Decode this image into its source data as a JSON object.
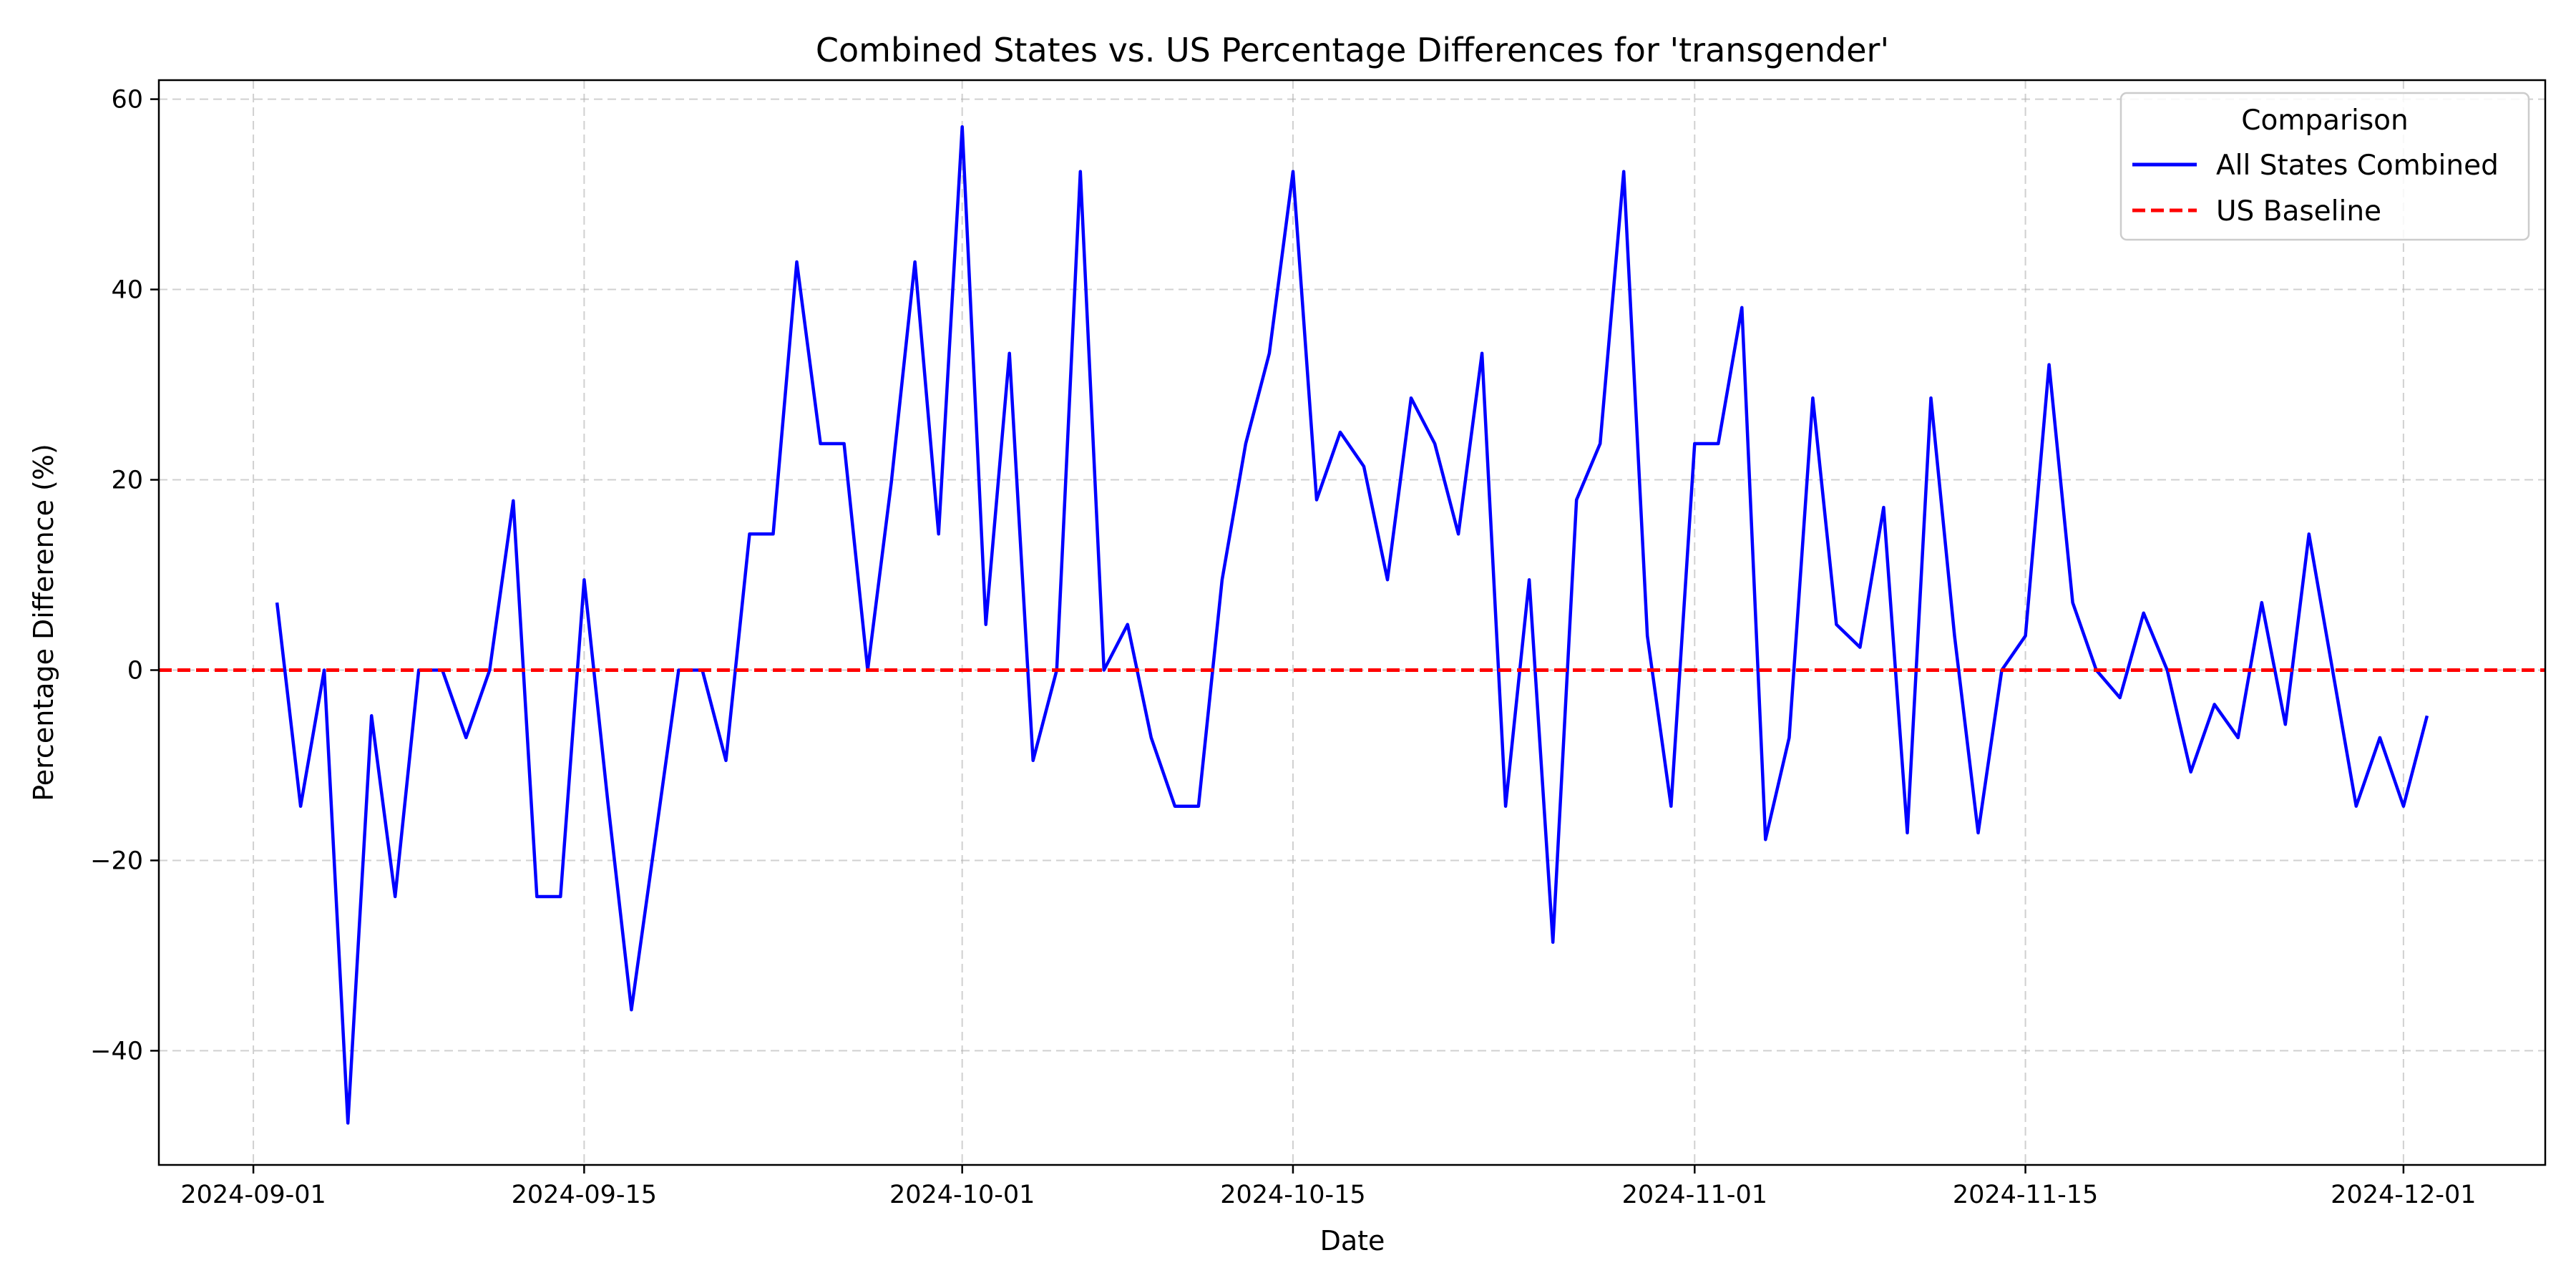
{
  "chart_data": {
    "type": "line",
    "title": "Combined States vs. US Percentage Differences for 'transgender'",
    "xlabel": "Date",
    "ylabel": "Percentage Difference (%)",
    "xlim": [
      "2024-08-28",
      "2024-12-07"
    ],
    "ylim": [
      -52,
      62
    ],
    "x_ticks": [
      "2024-09-01",
      "2024-09-15",
      "2024-10-01",
      "2024-10-15",
      "2024-11-01",
      "2024-11-15",
      "2024-12-01"
    ],
    "y_ticks": [
      60,
      40,
      20,
      0,
      -20,
      -40
    ],
    "y_tick_labels": [
      "60",
      "40",
      "20",
      "0",
      "−20",
      "−40"
    ],
    "grid": true,
    "legend": {
      "title": "Comparison",
      "placement": "top-right"
    },
    "series": [
      {
        "name": "All States Combined",
        "color": "#0000ff",
        "style": "solid",
        "x": [
          "2024-09-02",
          "2024-09-03",
          "2024-09-04",
          "2024-09-05",
          "2024-09-06",
          "2024-09-07",
          "2024-09-08",
          "2024-09-09",
          "2024-09-10",
          "2024-09-11",
          "2024-09-12",
          "2024-09-13",
          "2024-09-14",
          "2024-09-15",
          "2024-09-16",
          "2024-09-17",
          "2024-09-18",
          "2024-09-19",
          "2024-09-20",
          "2024-09-21",
          "2024-09-22",
          "2024-09-23",
          "2024-09-24",
          "2024-09-25",
          "2024-09-26",
          "2024-09-27",
          "2024-09-28",
          "2024-09-29",
          "2024-09-30",
          "2024-10-01",
          "2024-10-02",
          "2024-10-03",
          "2024-10-04",
          "2024-10-05",
          "2024-10-06",
          "2024-10-07",
          "2024-10-08",
          "2024-10-09",
          "2024-10-10",
          "2024-10-11",
          "2024-10-12",
          "2024-10-13",
          "2024-10-14",
          "2024-10-15",
          "2024-10-16",
          "2024-10-17",
          "2024-10-18",
          "2024-10-19",
          "2024-10-20",
          "2024-10-21",
          "2024-10-22",
          "2024-10-23",
          "2024-10-24",
          "2024-10-25",
          "2024-10-26",
          "2024-10-27",
          "2024-10-28",
          "2024-10-29",
          "2024-10-30",
          "2024-10-31",
          "2024-11-01",
          "2024-11-02",
          "2024-11-03",
          "2024-11-04",
          "2024-11-05",
          "2024-11-06",
          "2024-11-07",
          "2024-11-08",
          "2024-11-09",
          "2024-11-10",
          "2024-11-11",
          "2024-11-12",
          "2024-11-13",
          "2024-11-14",
          "2024-11-15",
          "2024-11-16",
          "2024-11-17",
          "2024-11-18",
          "2024-11-19",
          "2024-11-20",
          "2024-11-21",
          "2024-11-22",
          "2024-11-23",
          "2024-11-24",
          "2024-11-25",
          "2024-11-26",
          "2024-11-27",
          "2024-11-28",
          "2024-11-29",
          "2024-11-30",
          "2024-12-01",
          "2024-12-02"
        ],
        "values": [
          7.1,
          -14.3,
          0,
          -47.6,
          -4.8,
          -23.8,
          0,
          0,
          -7.1,
          0,
          17.8,
          -23.8,
          -23.8,
          9.5,
          -13.8,
          -35.7,
          -17.9,
          0,
          0,
          -9.5,
          14.3,
          14.3,
          42.9,
          23.8,
          23.8,
          0,
          19.7,
          42.9,
          14.3,
          57.1,
          4.8,
          33.3,
          -9.5,
          0,
          52.4,
          0,
          4.8,
          -7.1,
          -14.3,
          -14.3,
          9.5,
          23.8,
          33.3,
          52.4,
          17.9,
          25.0,
          21.4,
          9.5,
          28.6,
          23.8,
          14.3,
          33.3,
          -14.3,
          9.5,
          -28.6,
          17.9,
          23.8,
          52.4,
          3.6,
          -14.3,
          23.8,
          23.8,
          38.1,
          -17.8,
          -7.1,
          28.6,
          4.8,
          2.4,
          17.1,
          -17.1,
          28.6,
          3.6,
          -17.1,
          0,
          3.6,
          32.1,
          7.1,
          0,
          -2.9,
          6.0,
          0,
          -10.7,
          -3.6,
          -7.1,
          7.1,
          -5.7,
          14.3,
          0,
          -14.3,
          -7.1,
          -14.3,
          -4.8
        ]
      },
      {
        "name": "US Baseline",
        "color": "#ff0000",
        "style": "dashed",
        "y": 0
      }
    ]
  }
}
